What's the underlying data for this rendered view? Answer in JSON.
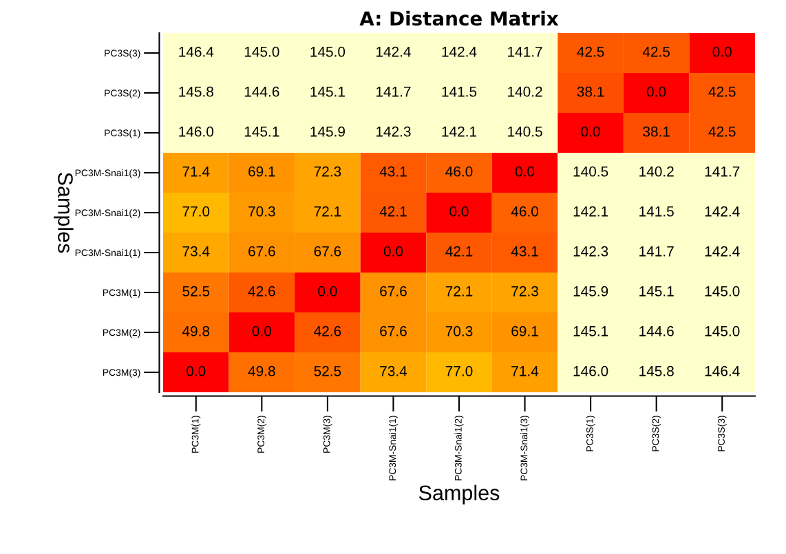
{
  "chart_data": {
    "type": "heatmap",
    "title": "A: Distance Matrix",
    "xlabel": "Samples",
    "ylabel": "Samples",
    "categories": [
      "PC3M(1)",
      "PC3M(2)",
      "PC3M(3)",
      "PC3M-Snai1(1)",
      "PC3M-Snai1(2)",
      "PC3M-Snai1(3)",
      "PC3S(1)",
      "PC3S(2)",
      "PC3S(3)"
    ],
    "y_categories": [
      "PC3S(3)",
      "PC3S(2)",
      "PC3S(1)",
      "PC3M-Snai1(3)",
      "PC3M-Snai1(2)",
      "PC3M-Snai1(1)",
      "PC3M(1)",
      "PC3M(2)",
      "PC3M(3)"
    ],
    "cells": [
      [
        146.4,
        145.0,
        145.0,
        142.4,
        142.4,
        141.7,
        42.5,
        42.5,
        0.0
      ],
      [
        145.8,
        144.6,
        145.1,
        141.7,
        141.5,
        140.2,
        38.1,
        0.0,
        42.5
      ],
      [
        146.0,
        145.1,
        145.9,
        142.3,
        142.1,
        140.5,
        0.0,
        38.1,
        42.5
      ],
      [
        71.4,
        69.1,
        72.3,
        43.1,
        46.0,
        0.0,
        140.5,
        140.2,
        141.7
      ],
      [
        77.0,
        70.3,
        72.1,
        42.1,
        0.0,
        46.0,
        142.1,
        141.5,
        142.4
      ],
      [
        73.4,
        67.6,
        67.6,
        0.0,
        42.1,
        43.1,
        142.3,
        141.7,
        142.4
      ],
      [
        52.5,
        42.6,
        0.0,
        67.6,
        72.1,
        72.3,
        145.9,
        145.1,
        145.0
      ],
      [
        49.8,
        0.0,
        42.6,
        67.6,
        70.3,
        69.1,
        145.1,
        144.6,
        145.0
      ],
      [
        0.0,
        49.8,
        52.5,
        73.4,
        77.0,
        71.4,
        146.0,
        145.8,
        146.4
      ]
    ],
    "cell_labels": [
      [
        "146.4",
        "145.0",
        "145.0",
        "142.4",
        "142.4",
        "141.7",
        "42.5",
        "42.5",
        "0.0"
      ],
      [
        "145.8",
        "144.6",
        "145.1",
        "141.7",
        "141.5",
        "140.2",
        "38.1",
        "0.0",
        "42.5"
      ],
      [
        "146.0",
        "145.1",
        "145.9",
        "142.3",
        "142.1",
        "140.5",
        "0.0",
        "38.1",
        "42.5"
      ],
      [
        "71.4",
        "69.1",
        "72.3",
        "43.1",
        "46.0",
        "0.0",
        "140.5",
        "140.2",
        "141.7"
      ],
      [
        "77.0",
        "70.3",
        "72.1",
        "42.1",
        "0.0",
        "46.0",
        "142.1",
        "141.5",
        "142.4"
      ],
      [
        "73.4",
        "67.6",
        "67.6",
        "0.0",
        "42.1",
        "43.1",
        "142.3",
        "141.7",
        "142.4"
      ],
      [
        "52.5",
        "42.6",
        "0.0",
        "67.6",
        "72.1",
        "72.3",
        "145.9",
        "145.1",
        "145.0"
      ],
      [
        "49.8",
        "0.0",
        "42.6",
        "67.6",
        "70.3",
        "69.1",
        "145.1",
        "144.6",
        "145.0"
      ],
      [
        "0.0",
        "49.8",
        "52.5",
        "73.4",
        "77.0",
        "71.4",
        "146.0",
        "145.8",
        "146.4"
      ]
    ]
  }
}
